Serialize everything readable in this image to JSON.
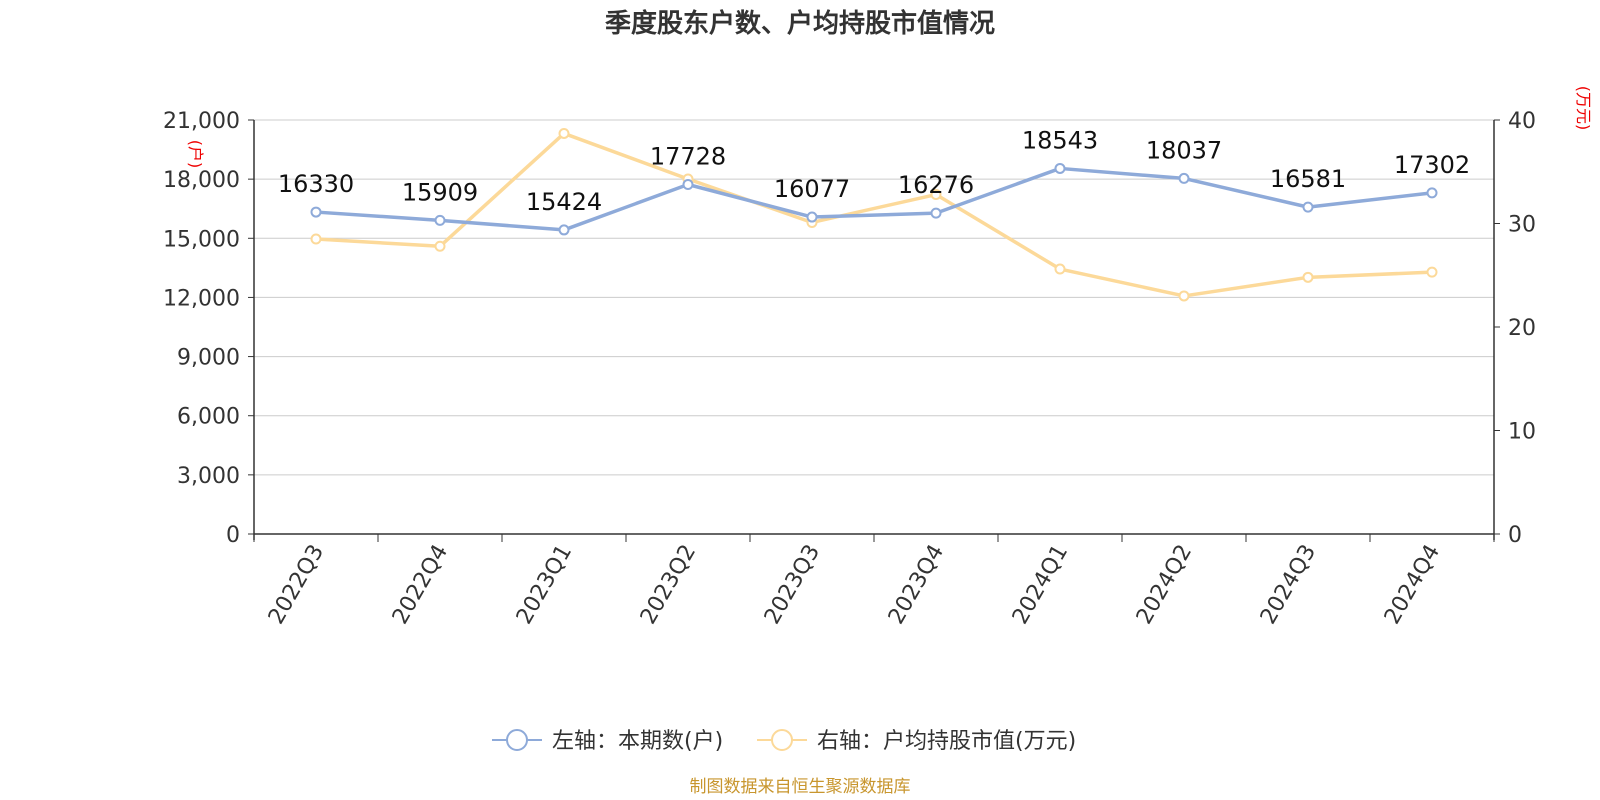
{
  "chart_data": {
    "type": "line",
    "title": "季度股东户数、户均持股市值情况",
    "categories": [
      "2022Q3",
      "2022Q4",
      "2023Q1",
      "2023Q2",
      "2023Q3",
      "2023Q4",
      "2024Q1",
      "2024Q2",
      "2024Q3",
      "2024Q4"
    ],
    "y_left": {
      "unit": "(户)",
      "range": [
        0,
        21000
      ],
      "ticks": [
        "0",
        "3,000",
        "6,000",
        "9,000",
        "12,000",
        "15,000",
        "18,000",
        "21,000"
      ]
    },
    "y_right": {
      "unit": "(万元)",
      "range": [
        0,
        40
      ],
      "ticks": [
        "0",
        "10",
        "20",
        "30",
        "40"
      ]
    },
    "grid": true,
    "legend_position": "bottom",
    "series": [
      {
        "name": "左轴：本期数(户)",
        "axis": "left",
        "color": "#8eaad9",
        "values": [
          16330,
          15909,
          15424,
          17728,
          16077,
          16276,
          18543,
          18037,
          16581,
          17302
        ],
        "data_labels": [
          "16330",
          "15909",
          "15424",
          "17728",
          "16077",
          "16276",
          "18543",
          "18037",
          "16581",
          "17302"
        ]
      },
      {
        "name": "右轴：户均持股市值(万元)",
        "axis": "right",
        "color": "#fcd999",
        "values": [
          28.5,
          27.8,
          38.7,
          34.3,
          30.1,
          32.8,
          25.6,
          23.0,
          24.8,
          25.3
        ]
      }
    ],
    "source": "制图数据来自恒生聚源数据库"
  }
}
